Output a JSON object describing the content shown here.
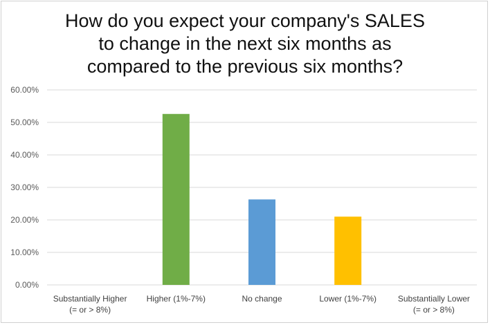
{
  "chart_data": {
    "type": "bar",
    "title_lines": [
      "How do you expect your company's SALES",
      "to change in the next six months as",
      "compared to the previous six months?"
    ],
    "categories": [
      [
        "Substantially Higher",
        "(= or > 8%)"
      ],
      [
        "Higher (1%-7%)"
      ],
      [
        "No change"
      ],
      [
        "Lower (1%-7%)"
      ],
      [
        "Substantially Lower",
        "(= or > 8%)"
      ]
    ],
    "values": [
      0,
      52.6,
      26.3,
      21.0,
      0
    ],
    "bar_colors": [
      "#70ad47",
      "#70ad47",
      "#5b9bd5",
      "#ffc000",
      "#70ad47"
    ],
    "y_ticks": [
      "0.00%",
      "10.00%",
      "20.00%",
      "30.00%",
      "40.00%",
      "50.00%",
      "60.00%"
    ],
    "ylim": [
      0,
      60
    ],
    "grid": true,
    "gridline_color": "#d9d9d9"
  }
}
